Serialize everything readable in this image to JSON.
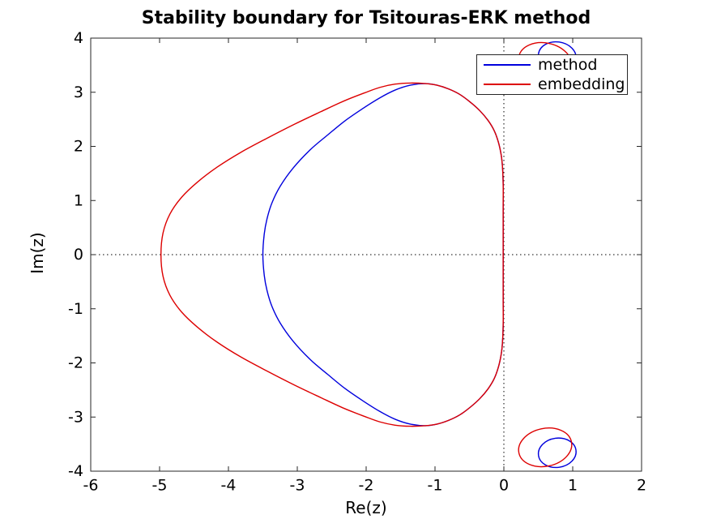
{
  "figure": {
    "background": "#ffffff",
    "frame_color": "#262626",
    "text_color": "#000000"
  },
  "chart_data": {
    "type": "line",
    "title": "Stability boundary for Tsitouras-ERK method",
    "xlabel": "Re(z)",
    "ylabel": "Im(z)",
    "xlim": [
      -6,
      2
    ],
    "ylim": [
      -4,
      4
    ],
    "xticks": [
      -6,
      -5,
      -4,
      -3,
      -2,
      -1,
      0,
      1,
      2
    ],
    "yticks": [
      -4,
      -3,
      -2,
      -1,
      0,
      1,
      2,
      3,
      4
    ],
    "grid": false,
    "box": true,
    "tick_direction": "in",
    "zero_lines": {
      "style": "dotted",
      "color": "#000000",
      "at_x": 0,
      "at_y": 0
    },
    "legend": {
      "position": "top-right",
      "border": "#262626",
      "entries": [
        {
          "label": "method",
          "color": "#0000dd"
        },
        {
          "label": "embedding",
          "color": "#dd0000"
        }
      ]
    },
    "series": [
      {
        "name": "method",
        "color": "#0000dd",
        "real_axis_crossing": -3.5,
        "main_boundary_upper_half": [
          [
            -3.5,
            0.0
          ],
          [
            -3.48,
            0.38
          ],
          [
            -3.44,
            0.66
          ],
          [
            -3.37,
            0.95
          ],
          [
            -3.25,
            1.26
          ],
          [
            -3.06,
            1.6
          ],
          [
            -2.81,
            1.94
          ],
          [
            -2.56,
            2.21
          ],
          [
            -2.31,
            2.47
          ],
          [
            -2.06,
            2.69
          ],
          [
            -1.81,
            2.89
          ],
          [
            -1.58,
            3.04
          ],
          [
            -1.36,
            3.13
          ],
          [
            -1.14,
            3.16
          ],
          [
            -0.97,
            3.13
          ],
          [
            -0.8,
            3.06
          ],
          [
            -0.64,
            2.96
          ],
          [
            -0.49,
            2.82
          ],
          [
            -0.35,
            2.66
          ],
          [
            -0.23,
            2.48
          ],
          [
            -0.14,
            2.29
          ],
          [
            -0.08,
            2.08
          ],
          [
            -0.04,
            1.85
          ],
          [
            -0.02,
            1.62
          ],
          [
            -0.01,
            1.3
          ],
          [
            -0.01,
            0.85
          ],
          [
            -0.01,
            0.4
          ],
          [
            -0.01,
            0.0
          ]
        ],
        "mirror_about_real_axis": true,
        "satellite_loops": [
          {
            "cx": 0.775,
            "cy": -3.66,
            "rx": 0.275,
            "ry": 0.27,
            "rot_deg": -8
          },
          {
            "cx": 0.775,
            "cy": 3.66,
            "rx": 0.275,
            "ry": 0.27,
            "rot_deg": 8
          }
        ]
      },
      {
        "name": "embedding",
        "color": "#dd0000",
        "real_axis_crossing": -4.98,
        "main_boundary_upper_half": [
          [
            -4.98,
            0.0
          ],
          [
            -4.95,
            0.4
          ],
          [
            -4.85,
            0.75
          ],
          [
            -4.68,
            1.06
          ],
          [
            -4.45,
            1.34
          ],
          [
            -4.16,
            1.62
          ],
          [
            -3.82,
            1.89
          ],
          [
            -3.44,
            2.15
          ],
          [
            -3.04,
            2.41
          ],
          [
            -2.66,
            2.64
          ],
          [
            -2.32,
            2.84
          ],
          [
            -2.02,
            2.99
          ],
          [
            -1.8,
            3.09
          ],
          [
            -1.58,
            3.15
          ],
          [
            -1.36,
            3.17
          ],
          [
            -1.14,
            3.16
          ],
          [
            -0.97,
            3.13
          ],
          [
            -0.8,
            3.06
          ],
          [
            -0.64,
            2.96
          ],
          [
            -0.49,
            2.82
          ],
          [
            -0.35,
            2.66
          ],
          [
            -0.23,
            2.48
          ],
          [
            -0.14,
            2.29
          ],
          [
            -0.08,
            2.08
          ],
          [
            -0.04,
            1.85
          ],
          [
            -0.02,
            1.62
          ],
          [
            -0.01,
            1.3
          ],
          [
            -0.01,
            0.85
          ],
          [
            -0.01,
            0.4
          ],
          [
            -0.01,
            0.0
          ]
        ],
        "mirror_about_real_axis": true,
        "satellite_loops": [
          {
            "cx": 0.6,
            "cy": -3.56,
            "rx": 0.39,
            "ry": 0.35,
            "rot_deg": -12
          },
          {
            "cx": 0.6,
            "cy": 3.56,
            "rx": 0.39,
            "ry": 0.35,
            "rot_deg": 12
          }
        ]
      }
    ]
  }
}
